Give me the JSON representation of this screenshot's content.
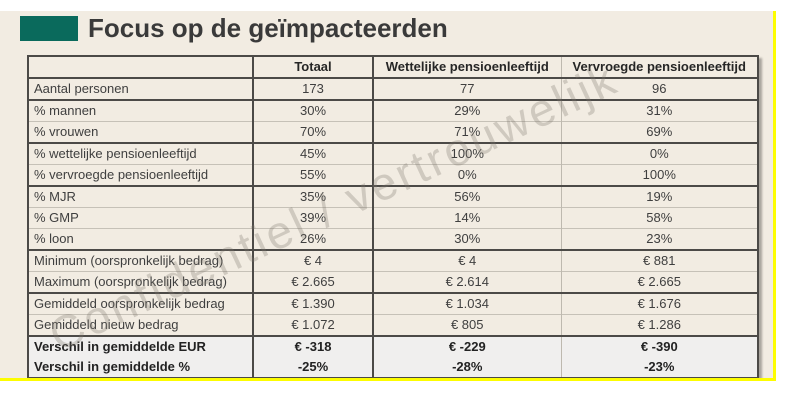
{
  "page": {
    "title": "Focus op de geïmpacteerden",
    "watermark": "Confidentiel / vertrouwelijk",
    "colors": {
      "accent_green": "#0a6a5c",
      "slide_background": "#f2ece2",
      "highlight_yellow": "#fdfd00",
      "border_dark": "#4c4a47",
      "border_light": "#c6c1b7",
      "summary_row_background": "#f0efee",
      "text": "#3f3f3f"
    }
  },
  "table": {
    "columns": [
      "",
      "Totaal",
      "Wettelijke pensioenleeftijd",
      "Vervroegde pensioenleeftijd"
    ],
    "rows": [
      {
        "label": "Aantal personen",
        "values": [
          "173",
          "77",
          "96"
        ],
        "border": "dark",
        "bold": false
      },
      {
        "label": "% mannen",
        "values": [
          "30%",
          "29%",
          "31%"
        ],
        "border": "dark",
        "bold": false
      },
      {
        "label": "% vrouwen",
        "values": [
          "70%",
          "71%",
          "69%"
        ],
        "border": "light",
        "bold": false
      },
      {
        "label": "% wettelijke pensioenleeftijd",
        "values": [
          "45%",
          "100%",
          "0%"
        ],
        "border": "dark",
        "bold": false
      },
      {
        "label": "% vervroegde pensioenleeftijd",
        "values": [
          "55%",
          "0%",
          "100%"
        ],
        "border": "light",
        "bold": false
      },
      {
        "label": "% MJR",
        "values": [
          "35%",
          "56%",
          "19%"
        ],
        "border": "dark",
        "bold": false
      },
      {
        "label": "% GMP",
        "values": [
          "39%",
          "14%",
          "58%"
        ],
        "border": "light",
        "bold": false
      },
      {
        "label": "% loon",
        "values": [
          "26%",
          "30%",
          "23%"
        ],
        "border": "light",
        "bold": false
      },
      {
        "label": "Minimum (oorspronkelijk bedrag)",
        "values": [
          "€ 4",
          "€ 4",
          "€ 881"
        ],
        "border": "dark",
        "bold": false
      },
      {
        "label": "Maximum (oorspronkelijk bedrag)",
        "values": [
          "€ 2.665",
          "€ 2.614",
          "€ 2.665"
        ],
        "border": "light",
        "bold": false
      },
      {
        "label": "Gemiddeld oorspronkelijk bedrag",
        "values": [
          "€ 1.390",
          "€ 1.034",
          "€ 1.676"
        ],
        "border": "dark",
        "bold": false
      },
      {
        "label": "Gemiddeld nieuw bedrag",
        "values": [
          "€ 1.072",
          "€ 805",
          "€ 1.286"
        ],
        "border": "light",
        "bold": false
      },
      {
        "label": "Verschil in gemiddelde EUR",
        "values": [
          "€ -318",
          "€ -229",
          "€ -390"
        ],
        "border": "dark",
        "bold": true
      },
      {
        "label": "Verschil in gemiddelde %",
        "values": [
          "-25%",
          "-28%",
          "-23%"
        ],
        "border": "none",
        "bold": true
      }
    ]
  }
}
